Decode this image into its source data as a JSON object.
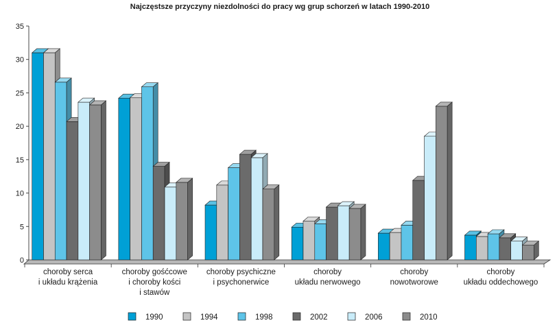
{
  "chart_data": {
    "type": "bar",
    "title": "Najczęstsze przyczyny niezdolności do pracy wg grup schorzeń w latach 1990-2010",
    "xlabel": "",
    "ylabel": "",
    "ylim": [
      0,
      35
    ],
    "yticks": [
      0,
      5,
      10,
      15,
      20,
      25,
      30,
      35
    ],
    "grid": false,
    "legend_position": "bottom",
    "categories": [
      [
        "choroby serca",
        "i układu krążenia"
      ],
      [
        "choroby gośćcowe",
        "i choroby kości",
        "i stawów"
      ],
      [
        "choroby psychiczne",
        "i psychonerwice"
      ],
      [
        "choroby",
        "układu nerwowego"
      ],
      [
        "choroby",
        "nowotworowe"
      ],
      [
        "choroby",
        "układu oddechowego"
      ]
    ],
    "series": [
      {
        "name": "1990",
        "color": "#00a0d6",
        "values": [
          31.0,
          24.2,
          8.2,
          4.9,
          4.0,
          3.7
        ]
      },
      {
        "name": "1994",
        "color": "#c4c4c4",
        "values": [
          31.0,
          24.3,
          11.2,
          5.8,
          4.1,
          3.5
        ]
      },
      {
        "name": "1998",
        "color": "#5ec4e8",
        "values": [
          26.6,
          25.9,
          13.8,
          5.4,
          5.2,
          3.9
        ]
      },
      {
        "name": "2002",
        "color": "#6b6b6b",
        "values": [
          20.7,
          14.0,
          15.8,
          7.9,
          11.9,
          3.3
        ]
      },
      {
        "name": "2006",
        "color": "#c9ecf9",
        "values": [
          23.6,
          10.9,
          15.3,
          8.1,
          18.5,
          2.8
        ]
      },
      {
        "name": "2010",
        "color": "#8c8c8c",
        "values": [
          23.2,
          11.6,
          10.6,
          7.7,
          23.0,
          2.2
        ]
      }
    ]
  }
}
